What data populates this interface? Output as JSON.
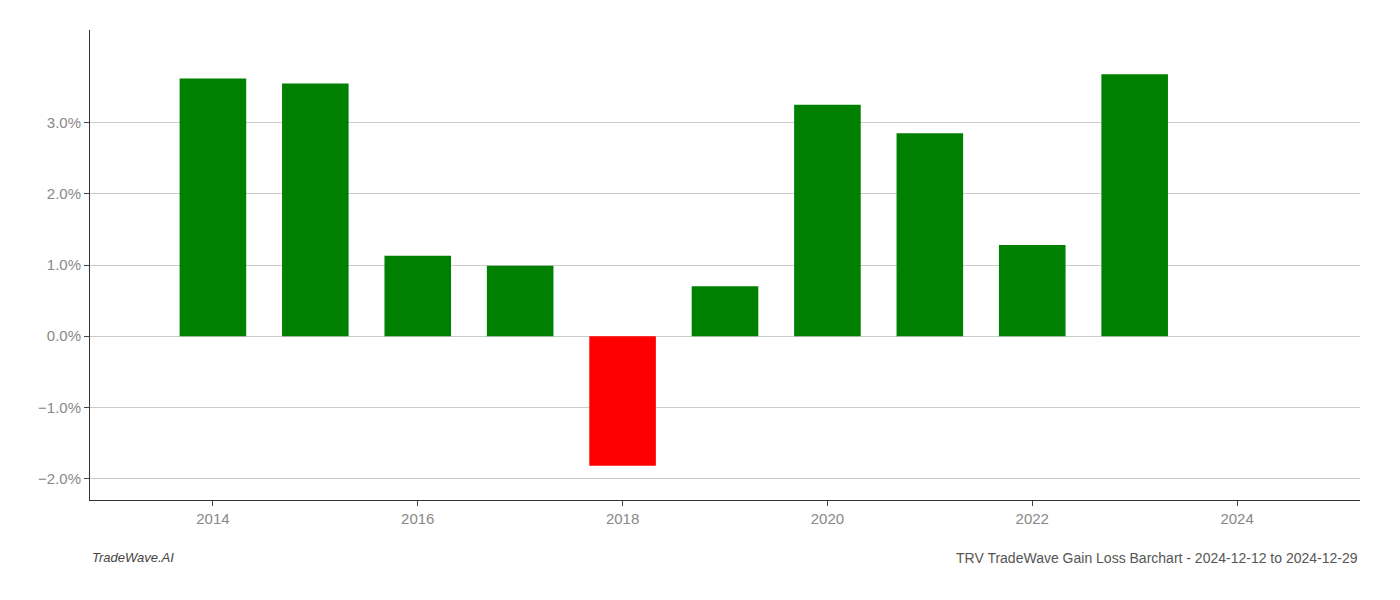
{
  "chart_data": {
    "type": "bar",
    "title": "TRV TradeWave Gain Loss Barchart - 2024-12-12 to 2024-12-29",
    "x": [
      2014,
      2015,
      2016,
      2017,
      2018,
      2019,
      2020,
      2021,
      2022,
      2023
    ],
    "values": [
      0.0362,
      0.0355,
      0.0113,
      0.0099,
      -0.0182,
      0.007,
      0.0325,
      0.0285,
      0.0128,
      0.0368
    ],
    "colors": [
      "#008000",
      "#008000",
      "#008000",
      "#008000",
      "#ff0000",
      "#008000",
      "#008000",
      "#008000",
      "#008000",
      "#008000"
    ],
    "xlim": [
      2012.8,
      2025.2
    ],
    "xticks": [
      2014,
      2016,
      2018,
      2020,
      2022,
      2024
    ],
    "ylim": [
      -0.023,
      0.043
    ],
    "yticks": [
      {
        "value": -0.02,
        "label": "−2.0%"
      },
      {
        "value": -0.01,
        "label": "−1.0%"
      },
      {
        "value": 0.0,
        "label": "0.0%"
      },
      {
        "value": 0.01,
        "label": "1.0%"
      },
      {
        "value": 0.02,
        "label": "2.0%"
      },
      {
        "value": 0.03,
        "label": "3.0%"
      }
    ],
    "grid": true,
    "annotations": [
      "TradeWave.AI"
    ]
  }
}
